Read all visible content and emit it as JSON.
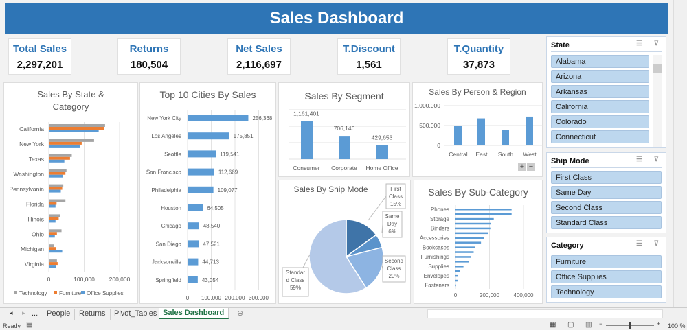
{
  "header": {
    "title": "Sales Dashboard"
  },
  "kpis": [
    {
      "label": "Total Sales",
      "value": "2,297,201"
    },
    {
      "label": "Returns",
      "value": "180,504"
    },
    {
      "label": "Net Sales",
      "value": "2,116,697"
    },
    {
      "label": "T.Discount",
      "value": "1,561"
    },
    {
      "label": "T.Quantity",
      "value": "37,873"
    }
  ],
  "colors": {
    "accent": "#2e75b6",
    "technology": "#a5a5a5",
    "furniture": "#ed7d31",
    "office_supplies": "#5b9bd5",
    "bar": "#5b9bd5"
  },
  "chart_data": [
    {
      "id": "state",
      "type": "bar",
      "orientation": "horizontal",
      "title": "Sales By State & Category",
      "categories": [
        "California",
        "New York",
        "Texas",
        "Washington",
        "Pennsylvania",
        "Florida",
        "Illinois",
        "Ohio",
        "Michigan",
        "Virginia"
      ],
      "series": [
        {
          "name": "Technology",
          "values": [
            159000,
            128000,
            65000,
            50000,
            41000,
            47000,
            32000,
            36000,
            15000,
            23000
          ]
        },
        {
          "name": "Furniture",
          "values": [
            156000,
            93000,
            60000,
            47000,
            38000,
            22000,
            28000,
            23000,
            21000,
            25000
          ]
        },
        {
          "name": "Office Supplies",
          "values": [
            141000,
            89000,
            44000,
            40000,
            34000,
            19000,
            19000,
            17000,
            38000,
            20000
          ]
        }
      ],
      "xticks": [
        "0",
        "100,000",
        "200,000"
      ],
      "xlim": [
        0,
        200000
      ],
      "legend": "bottom",
      "grid": true
    },
    {
      "id": "cities",
      "type": "bar",
      "orientation": "horizontal",
      "title": "Top 10 Cities By Sales",
      "categories": [
        "New York City",
        "Los Angeles",
        "Seattle",
        "San Francisco",
        "Philadelphia",
        "Houston",
        "Chicago",
        "San Diego",
        "Jacksonville",
        "Springfield"
      ],
      "values": [
        256368,
        175851,
        119541,
        112669,
        109077,
        64505,
        48540,
        47521,
        44713,
        43054
      ],
      "labels": [
        "256,368",
        "175,851",
        "119,541",
        "112,669",
        "109,077",
        "64,505",
        "48,540",
        "47,521",
        "44,713",
        "43,054"
      ],
      "xticks": [
        "0",
        "100,000",
        "200,000",
        "300,000"
      ],
      "xlim": [
        0,
        300000
      ],
      "grid": true
    },
    {
      "id": "segment",
      "type": "bar",
      "title": "Sales By Segment",
      "categories": [
        "Consumer",
        "Corporate",
        "Home Office"
      ],
      "values": [
        1161401,
        706146,
        429653
      ],
      "labels": [
        "1,161,401",
        "706,146",
        "429,653"
      ],
      "ylim": [
        0,
        1500000
      ],
      "grid": true
    },
    {
      "id": "region",
      "type": "bar",
      "title": "Sales By Person & Region",
      "categories": [
        "Central",
        "East",
        "South",
        "West"
      ],
      "values": [
        500000,
        680000,
        390000,
        725000
      ],
      "yticks": [
        "0",
        "500,000",
        "1,000,000"
      ],
      "ylim": [
        0,
        1000000
      ],
      "grid": true
    },
    {
      "id": "shipmode",
      "type": "pie",
      "title": "Sales By Ship Mode",
      "slices": [
        {
          "label": "First Class",
          "pct": "15%",
          "value": 15,
          "color": "#3f74a8"
        },
        {
          "label": "Same Day",
          "pct": "6%",
          "value": 6,
          "color": "#5b93cb"
        },
        {
          "label": "Second Class",
          "pct": "20%",
          "value": 20,
          "color": "#8db4e2"
        },
        {
          "label": "Standard Class",
          "pct": "59%",
          "value": 59,
          "color": "#b4c9e8"
        }
      ]
    },
    {
      "id": "subcat",
      "type": "bar",
      "orientation": "horizontal",
      "title": "Sales By Sub-Category",
      "categories": [
        "Phones",
        "",
        "Storage",
        "",
        "Binders",
        "",
        "Accessories",
        "",
        "Bookcases",
        "",
        "Furnishings",
        "",
        "Supplies",
        "",
        "Envelopes",
        "",
        "Fasteners"
      ],
      "values": [
        330000,
        330000,
        225000,
        208000,
        205000,
        190000,
        168000,
        150000,
        115000,
        107000,
        92000,
        80000,
        47000,
        26000,
        16000,
        12000,
        3000
      ],
      "xticks": [
        "0",
        "200,000",
        "400,000"
      ],
      "xlim": [
        0,
        400000
      ],
      "grid": true
    }
  ],
  "slicers": [
    {
      "title": "State",
      "items": [
        "Alabama",
        "Arizona",
        "Arkansas",
        "California",
        "Colorado",
        "Connecticut"
      ]
    },
    {
      "title": "Ship Mode",
      "items": [
        "First Class",
        "Same Day",
        "Second Class",
        "Standard Class"
      ]
    },
    {
      "title": "Category",
      "items": [
        "Furniture",
        "Office Supplies",
        "Technology"
      ]
    }
  ],
  "zoom_buttons": {
    "plus": "+",
    "minus": "−"
  },
  "sheet_tabs": {
    "ellipsis": "...",
    "tabs": [
      "People",
      "Returns",
      "Pivot_Tables",
      "Sales Dashboard"
    ],
    "active": "Sales Dashboard"
  },
  "status": {
    "ready": "Ready",
    "zoom": "100 %"
  }
}
